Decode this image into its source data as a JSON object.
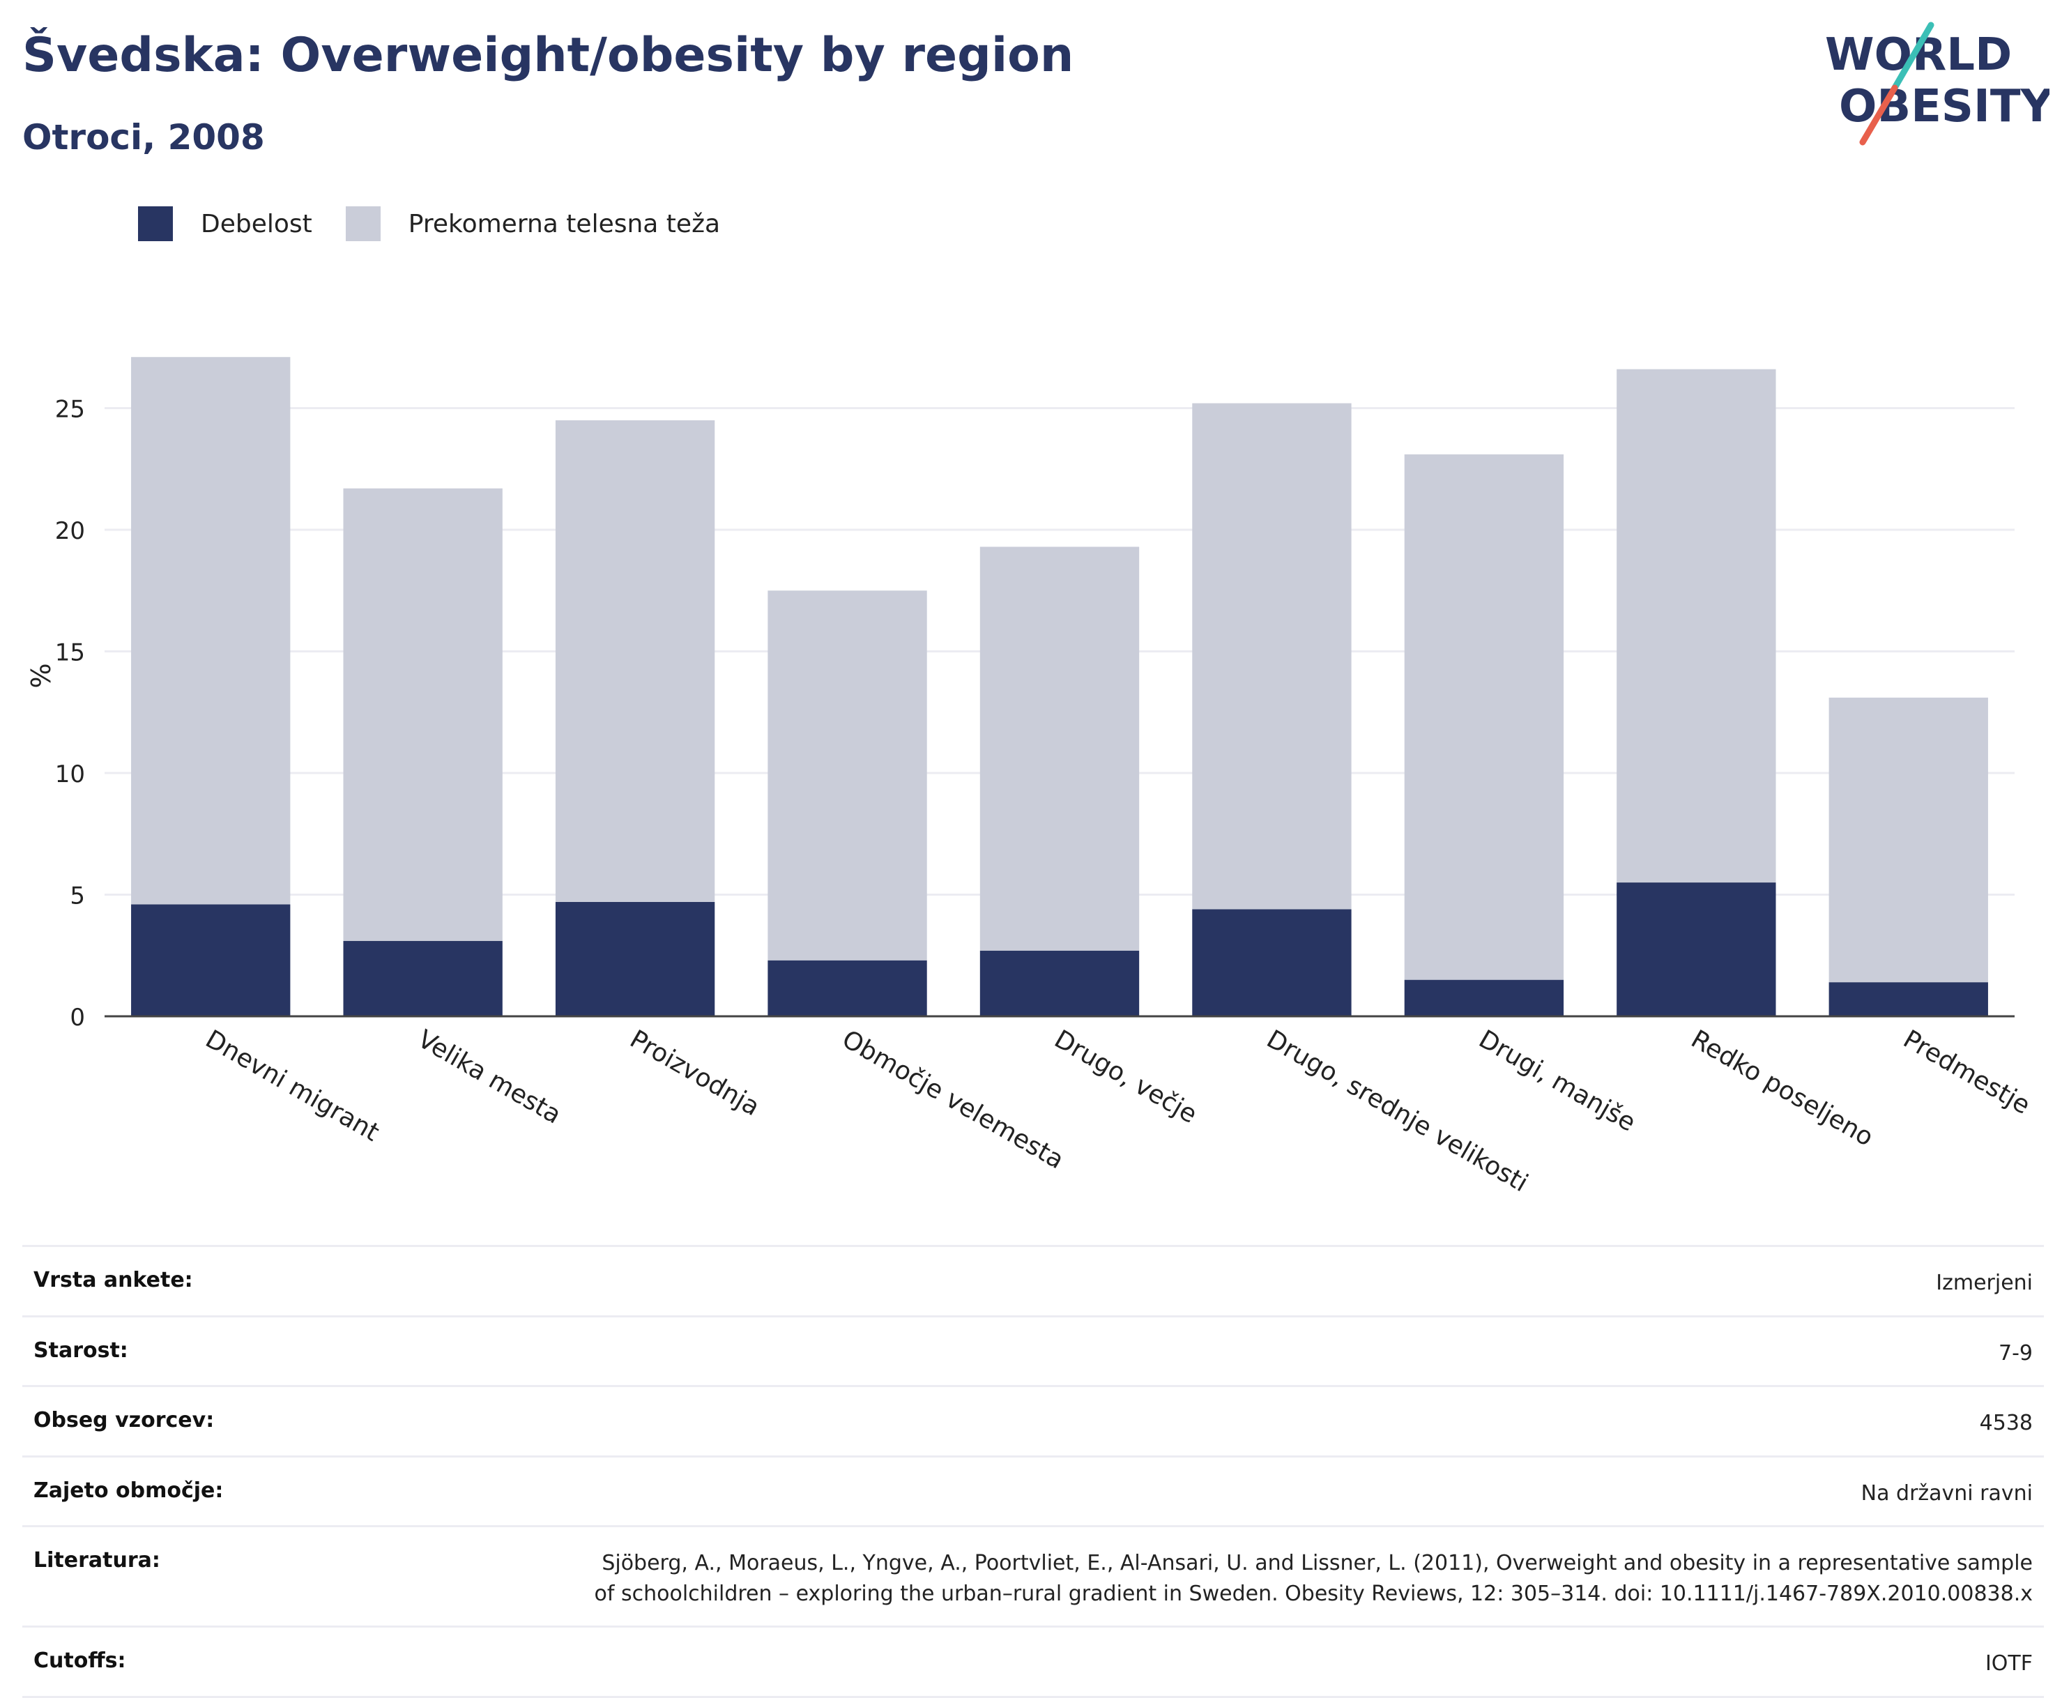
{
  "header": {
    "title": "Švedska: Overweight/obesity by region",
    "subtitle": "Otroci, 2008"
  },
  "logo": {
    "line1": "WORLD",
    "line2": "OBESITY"
  },
  "legend": [
    {
      "label": "Debelost",
      "color": "#283562"
    },
    {
      "label": "Prekomerna telesna teža",
      "color": "#cacdd9"
    }
  ],
  "chart_data": {
    "type": "bar",
    "stacked": true,
    "categories": [
      "Dnevni migrant",
      "Velika mesta",
      "Proizvodnja",
      "Območje velemesta",
      "Drugo, večje",
      "Drugo, srednje velikosti",
      "Drugi, manjše",
      "Redko poseljeno",
      "Predmestje"
    ],
    "series": [
      {
        "name": "Debelost",
        "color": "#283562",
        "values": [
          4.6,
          3.1,
          4.7,
          2.3,
          2.7,
          4.4,
          1.5,
          5.5,
          1.4
        ]
      },
      {
        "name": "Prekomerna telesna teža",
        "color": "#cacdd9",
        "values": [
          22.5,
          18.6,
          19.8,
          15.2,
          16.6,
          20.8,
          21.6,
          21.1,
          11.7
        ]
      }
    ],
    "ylabel": "%",
    "ylim": [
      0,
      28
    ],
    "yticks": [
      0,
      5,
      10,
      15,
      20,
      25
    ],
    "grid": true
  },
  "info": [
    {
      "label": "Vrsta ankete:",
      "value": "Izmerjeni"
    },
    {
      "label": "Starost:",
      "value": "7-9"
    },
    {
      "label": "Obseg vzorcev:",
      "value": "4538"
    },
    {
      "label": "Zajeto območje:",
      "value": "Na državni ravni"
    },
    {
      "label": "Literatura:",
      "value": "Sjöberg, A., Moraeus, L., Yngve, A., Poortvliet, E., Al-Ansari, U. and Lissner, L. (2011), Overweight and obesity in a representative sample of schoolchildren – exploring the urban–rural gradient in Sweden. Obesity Reviews, 12: 305–314. doi: 10.1111/j.1467-789X.2010.00838.x"
    },
    {
      "label": "Cutoffs:",
      "value": "IOTF"
    }
  ]
}
